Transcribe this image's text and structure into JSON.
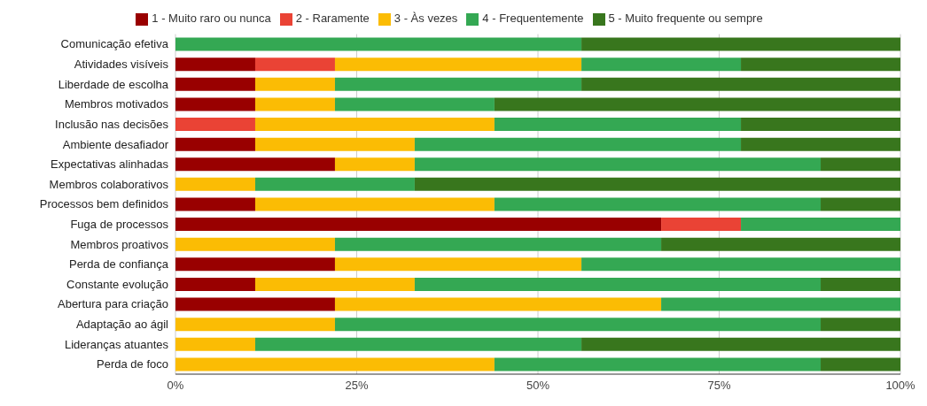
{
  "chart_data": {
    "type": "bar",
    "orientation": "horizontal",
    "stacked": true,
    "legend": "top",
    "grid": "x",
    "categories": [
      "Comunicação efetiva",
      "Atividades visíveis",
      "Liberdade de escolha",
      "Membros motivados",
      "Inclusão nas decisões",
      "Ambiente desafiador",
      "Expectativas alinhadas",
      "Membros colaborativos",
      "Processos bem definidos",
      "Fuga de processos",
      "Membros proativos",
      "Perda de confiança",
      "Constante evolução",
      "Abertura para criação",
      "Adaptação ao ágil",
      "Lideranças atuantes",
      "Perda de foco"
    ],
    "series": [
      {
        "name": "1 - Muito raro ou nunca",
        "color": "#990000",
        "values": [
          0,
          11,
          11,
          11,
          0,
          11,
          22,
          0,
          11,
          67,
          0,
          22,
          11,
          22,
          0,
          0,
          0
        ]
      },
      {
        "name": "2 - Raramente",
        "color": "#ea4335",
        "values": [
          0,
          11,
          0,
          0,
          11,
          0,
          0,
          0,
          0,
          11,
          0,
          0,
          0,
          0,
          0,
          0,
          0
        ]
      },
      {
        "name": "3 - Às vezes",
        "color": "#fbbc04",
        "values": [
          0,
          34,
          11,
          11,
          33,
          22,
          11,
          11,
          33,
          0,
          22,
          34,
          22,
          45,
          22,
          11,
          44
        ]
      },
      {
        "name": "4 - Frequentemente",
        "color": "#34a853",
        "values": [
          56,
          22,
          34,
          22,
          34,
          45,
          56,
          22,
          45,
          22,
          45,
          44,
          56,
          33,
          67,
          45,
          45
        ]
      },
      {
        "name": "5 - Muito frequente ou sempre",
        "color": "#38761d",
        "values": [
          44,
          22,
          44,
          56,
          22,
          22,
          11,
          67,
          11,
          0,
          33,
          0,
          11,
          0,
          11,
          44,
          11
        ]
      }
    ],
    "xlim": [
      0,
      100
    ],
    "xticks": [
      {
        "value": 0,
        "label": "0%"
      },
      {
        "value": 25,
        "label": "25%"
      },
      {
        "value": 50,
        "label": "50%"
      },
      {
        "value": 75,
        "label": "75%"
      },
      {
        "value": 100,
        "label": "100%"
      }
    ]
  }
}
